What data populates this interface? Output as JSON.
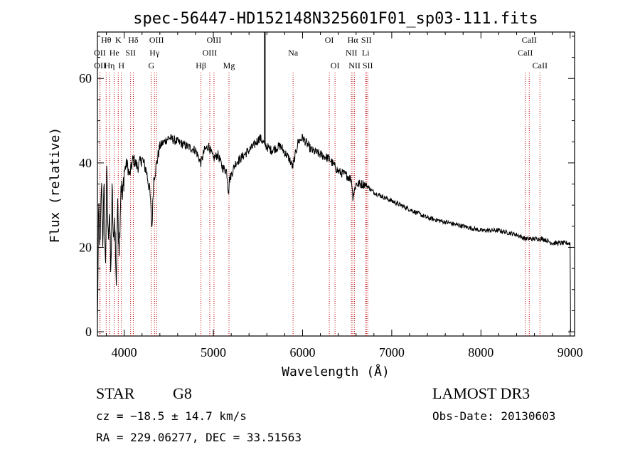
{
  "chart_data": {
    "type": "line",
    "title": "spec-56447-HD152148N325601F01_sp03-111.fits",
    "xlabel": "Wavelength (Å)",
    "ylabel": "Flux (relative)",
    "xlim": [
      3700,
      9050
    ],
    "ylim": [
      -1,
      71
    ],
    "xticks": [
      4000,
      5000,
      6000,
      7000,
      8000,
      9000
    ],
    "yticks": [
      0,
      20,
      40,
      60
    ],
    "grid": false,
    "series": [
      {
        "name": "flux",
        "anchors": [
          [
            3700,
            2
          ],
          [
            3715,
            30
          ],
          [
            3730,
            18
          ],
          [
            3745,
            36
          ],
          [
            3760,
            22
          ],
          [
            3775,
            34
          ],
          [
            3790,
            14
          ],
          [
            3805,
            38
          ],
          [
            3820,
            22
          ],
          [
            3835,
            30
          ],
          [
            3850,
            12
          ],
          [
            3865,
            34
          ],
          [
            3880,
            20
          ],
          [
            3895,
            28
          ],
          [
            3910,
            10
          ],
          [
            3925,
            30
          ],
          [
            3945,
            20
          ],
          [
            3965,
            36
          ],
          [
            3980,
            31
          ],
          [
            4000,
            38
          ],
          [
            4030,
            40
          ],
          [
            4060,
            37
          ],
          [
            4100,
            41
          ],
          [
            4150,
            39
          ],
          [
            4200,
            41
          ],
          [
            4250,
            38
          ],
          [
            4290,
            33
          ],
          [
            4310,
            24
          ],
          [
            4330,
            36
          ],
          [
            4400,
            44
          ],
          [
            4500,
            46
          ],
          [
            4600,
            45
          ],
          [
            4700,
            44
          ],
          [
            4800,
            43
          ],
          [
            4860,
            40
          ],
          [
            4900,
            43
          ],
          [
            4950,
            44
          ],
          [
            5000,
            41
          ],
          [
            5050,
            42
          ],
          [
            5100,
            39
          ],
          [
            5150,
            38
          ],
          [
            5170,
            33
          ],
          [
            5180,
            36
          ],
          [
            5250,
            40
          ],
          [
            5350,
            42
          ],
          [
            5450,
            44
          ],
          [
            5520,
            46
          ],
          [
            5590,
            44
          ],
          [
            5650,
            43
          ],
          [
            5750,
            44
          ],
          [
            5850,
            41
          ],
          [
            5890,
            39
          ],
          [
            5950,
            45
          ],
          [
            6000,
            46
          ],
          [
            6100,
            43
          ],
          [
            6200,
            42
          ],
          [
            6300,
            41
          ],
          [
            6400,
            38
          ],
          [
            6500,
            37
          ],
          [
            6550,
            36
          ],
          [
            6563,
            32
          ],
          [
            6600,
            35
          ],
          [
            6700,
            35
          ],
          [
            6800,
            33
          ],
          [
            6900,
            32
          ],
          [
            7000,
            31
          ],
          [
            7200,
            29
          ],
          [
            7400,
            27
          ],
          [
            7600,
            26
          ],
          [
            7800,
            25
          ],
          [
            8000,
            24
          ],
          [
            8200,
            24
          ],
          [
            8400,
            23
          ],
          [
            8500,
            22
          ],
          [
            8600,
            22
          ],
          [
            8700,
            22
          ],
          [
            8800,
            21
          ],
          [
            8900,
            21
          ],
          [
            9000,
            21
          ]
        ],
        "spike": {
          "x": 5577,
          "y": 71
        }
      }
    ],
    "lines": [
      {
        "label": "Hθ",
        "wavelength": 3798,
        "row": 1
      },
      {
        "label": "OII",
        "wavelength": 3727,
        "row": 2
      },
      {
        "label": "OII",
        "wavelength": 3729,
        "row": 3
      },
      {
        "label": "He",
        "wavelength": 3889,
        "row": 2
      },
      {
        "label": "Hη",
        "wavelength": 3835,
        "row": 3
      },
      {
        "label": "K",
        "wavelength": 3934,
        "row": 1
      },
      {
        "label": "H",
        "wavelength": 3969,
        "row": 3
      },
      {
        "label": "SII",
        "wavelength": 4072,
        "row": 2
      },
      {
        "label": "Hδ",
        "wavelength": 4102,
        "row": 1
      },
      {
        "label": "OIII",
        "wavelength": 4363,
        "row": 1
      },
      {
        "label": "Hγ",
        "wavelength": 4340,
        "row": 2
      },
      {
        "label": "G",
        "wavelength": 4305,
        "row": 3
      },
      {
        "label": "Hβ",
        "wavelength": 4861,
        "row": 3
      },
      {
        "label": "OIII",
        "wavelength": 5007,
        "row": 1
      },
      {
        "label": "OIII",
        "wavelength": 4959,
        "row": 2
      },
      {
        "label": "Mg",
        "wavelength": 5175,
        "row": 3
      },
      {
        "label": "Na",
        "wavelength": 5894,
        "row": 2
      },
      {
        "label": "OI",
        "wavelength": 6300,
        "row": 1
      },
      {
        "label": "OI",
        "wavelength": 6364,
        "row": 3
      },
      {
        "label": "Hα",
        "wavelength": 6563,
        "row": 1
      },
      {
        "label": "NII",
        "wavelength": 6548,
        "row": 2
      },
      {
        "label": "NII",
        "wavelength": 6583,
        "row": 3
      },
      {
        "label": "SII",
        "wavelength": 6716,
        "row": 1
      },
      {
        "label": "Li",
        "wavelength": 6708,
        "row": 2
      },
      {
        "label": "SII",
        "wavelength": 6731,
        "row": 3
      },
      {
        "label": "CaII",
        "wavelength": 8542,
        "row": 1
      },
      {
        "label": "CaII",
        "wavelength": 8498,
        "row": 2
      },
      {
        "label": "CaII",
        "wavelength": 8662,
        "row": 3
      }
    ]
  },
  "info": {
    "object_class": "STAR",
    "subclass": "G8",
    "survey": "LAMOST DR3",
    "redshift_text": "cz = −18.5 ± 14.7 km/s",
    "obs_date_text": "Obs-Date: 20130603",
    "coords_text": "RA = 229.06277, DEC =  33.51563"
  }
}
